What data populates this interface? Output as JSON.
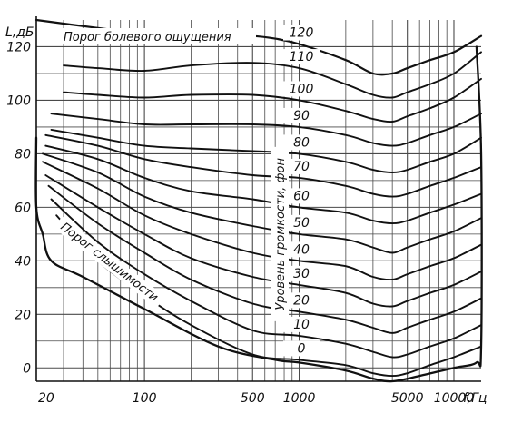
{
  "chart_data": {
    "type": "line",
    "xscale": "log",
    "xlim": [
      20,
      15000
    ],
    "ylim": [
      -5,
      130
    ],
    "grid": true,
    "xlabel": "f,Гц",
    "ylabel": "L,дБ",
    "yticks": [
      0,
      20,
      40,
      60,
      80,
      100,
      120
    ],
    "xticks": [
      20,
      100,
      500,
      1000,
      5000,
      10000
    ],
    "xtick_labels": [
      "20",
      "100",
      "500",
      "1000",
      "5000",
      "10000"
    ],
    "minor_xgrid": [
      30,
      40,
      50,
      60,
      70,
      80,
      90,
      200,
      300,
      400,
      600,
      700,
      800,
      900,
      2000,
      3000,
      4000,
      6000,
      7000,
      8000,
      9000
    ],
    "minor_ygrid": [
      10,
      30,
      50,
      70,
      90,
      110
    ],
    "vertical_label": "Уровень громкости, фон",
    "annotations": {
      "pain_threshold": "Порог болевого ощущения",
      "hearing_threshold": "Порог слышимости"
    },
    "phon_labels": [
      "120",
      "110",
      "100",
      "90",
      "80",
      "70",
      "60",
      "50",
      "40",
      "30",
      "20",
      "10",
      "0"
    ],
    "boundary": [
      {
        "x": 20,
        "y": 86
      },
      {
        "x": 20,
        "y": 60
      },
      {
        "x": 22,
        "y": 50
      },
      {
        "x": 25,
        "y": 40
      },
      {
        "x": 40,
        "y": 34
      },
      {
        "x": 100,
        "y": 22
      },
      {
        "x": 300,
        "y": 8
      },
      {
        "x": 700,
        "y": 3
      },
      {
        "x": 1000,
        "y": 2
      },
      {
        "x": 2000,
        "y": -1
      },
      {
        "x": 3000,
        "y": -4
      },
      {
        "x": 4000,
        "y": -5
      },
      {
        "x": 6000,
        "y": -3
      },
      {
        "x": 10000,
        "y": 0
      },
      {
        "x": 14000,
        "y": 2
      },
      {
        "x": 15000,
        "y": 8
      },
      {
        "x": 15000,
        "y": 80
      },
      {
        "x": 14000,
        "y": 120
      }
    ],
    "series": [
      {
        "name": "Порог болевого ощущения",
        "x": [
          20,
          50,
          100,
          300,
          500,
          700,
          1000,
          2000,
          3000,
          4000,
          5000,
          7000,
          10000,
          15000
        ],
        "y": [
          130,
          127,
          125,
          124,
          124,
          123,
          121,
          115,
          110,
          110,
          112,
          115,
          118,
          124
        ]
      },
      {
        "name": "110",
        "x": [
          30,
          50,
          100,
          200,
          500,
          1000,
          2000,
          3000,
          4000,
          5000,
          7000,
          10000,
          15000
        ],
        "y": [
          113,
          112,
          111,
          113,
          114,
          112,
          106,
          102,
          101,
          103,
          106,
          110,
          118
        ]
      },
      {
        "name": "100",
        "x": [
          30,
          50,
          100,
          200,
          500,
          1000,
          2000,
          3000,
          4000,
          5000,
          7000,
          10000,
          15000
        ],
        "y": [
          103,
          102,
          101,
          102,
          102,
          100,
          96,
          93,
          92,
          94,
          97,
          101,
          108
        ]
      },
      {
        "name": "90",
        "x": [
          25,
          50,
          100,
          200,
          500,
          1000,
          2000,
          3000,
          4000,
          5000,
          7000,
          10000,
          15000
        ],
        "y": [
          95,
          93,
          91,
          91,
          91,
          90,
          87,
          84,
          83,
          84,
          87,
          90,
          95
        ]
      },
      {
        "name": "80",
        "x": [
          25,
          50,
          100,
          200,
          500,
          1000,
          2000,
          3000,
          4000,
          5000,
          7000,
          10000,
          15000
        ],
        "y": [
          89,
          86,
          83,
          82,
          81,
          80,
          77,
          74,
          73,
          74,
          77,
          80,
          86
        ]
      },
      {
        "name": "70",
        "x": [
          23,
          50,
          100,
          200,
          500,
          1000,
          2000,
          3000,
          4000,
          5000,
          7000,
          10000,
          15000
        ],
        "y": [
          87,
          83,
          78,
          75,
          72,
          71,
          68,
          65,
          64,
          65,
          68,
          71,
          75
        ]
      },
      {
        "name": "60",
        "x": [
          23,
          50,
          100,
          200,
          500,
          1000,
          2000,
          3000,
          4000,
          5000,
          7000,
          10000,
          15000
        ],
        "y": [
          83,
          78,
          71,
          66,
          63,
          60,
          58,
          55,
          54,
          55,
          58,
          61,
          65
        ]
      },
      {
        "name": "50",
        "x": [
          22,
          50,
          100,
          200,
          500,
          1000,
          2000,
          3000,
          4000,
          5000,
          7000,
          10000,
          15000
        ],
        "y": [
          80,
          73,
          64,
          58,
          53,
          50,
          48,
          45,
          43,
          45,
          48,
          51,
          56
        ]
      },
      {
        "name": "40",
        "x": [
          22,
          50,
          100,
          200,
          500,
          1000,
          2000,
          3000,
          4000,
          5000,
          7000,
          10000,
          15000
        ],
        "y": [
          77,
          67,
          57,
          50,
          43,
          40,
          38,
          34,
          33,
          35,
          38,
          41,
          46
        ]
      },
      {
        "name": "30",
        "x": [
          23,
          50,
          100,
          200,
          500,
          1000,
          2000,
          3000,
          4000,
          5000,
          7000,
          10000,
          15000
        ],
        "y": [
          72,
          60,
          50,
          41,
          34,
          31,
          28,
          24,
          23,
          25,
          28,
          31,
          36
        ]
      },
      {
        "name": "20",
        "x": [
          24,
          50,
          100,
          200,
          500,
          1000,
          2000,
          3000,
          4000,
          5000,
          7000,
          10000,
          15000
        ],
        "y": [
          68,
          54,
          43,
          33,
          24,
          21,
          18,
          15,
          13,
          15,
          18,
          21,
          26
        ]
      },
      {
        "name": "10",
        "x": [
          25,
          50,
          100,
          200,
          500,
          1000,
          2000,
          3000,
          4000,
          5000,
          7000,
          10000,
          15000
        ],
        "y": [
          63,
          47,
          35,
          25,
          14,
          12,
          9,
          6,
          4,
          5,
          8,
          11,
          16
        ]
      },
      {
        "name": "0",
        "x": [
          27,
          50,
          100,
          200,
          500,
          1000,
          2000,
          3000,
          4000,
          5000,
          7000,
          10000,
          15000
        ],
        "y": [
          57,
          40,
          27,
          16,
          5,
          3,
          1,
          -2,
          -3,
          -2,
          1,
          4,
          8
        ]
      }
    ]
  }
}
